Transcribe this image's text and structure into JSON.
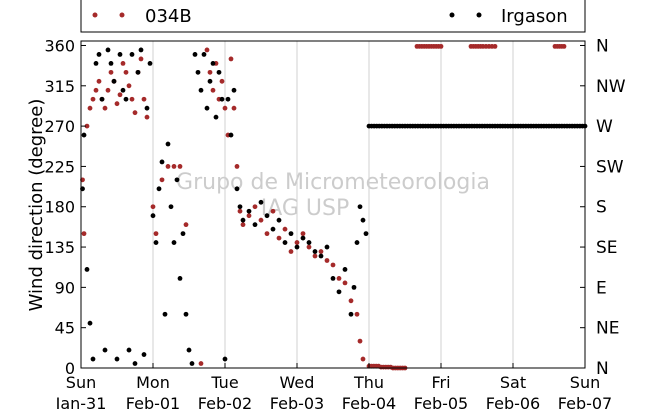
{
  "chart_data": {
    "type": "scatter",
    "title": "",
    "xlabel": "",
    "ylabel": "Wind direction (degree)",
    "ylim": [
      0,
      365
    ],
    "yticks": [
      0,
      45,
      90,
      135,
      180,
      225,
      270,
      315,
      360
    ],
    "right_axis_labels": [
      "N",
      "NE",
      "E",
      "SE",
      "S",
      "SW",
      "W",
      "NW",
      "N"
    ],
    "x_start": "2015-01-31",
    "x_end": "2015-02-07",
    "x_tick_labels": [
      {
        "day": "Sun",
        "date": "Jan-31"
      },
      {
        "day": "Mon",
        "date": "Feb-01"
      },
      {
        "day": "Tue",
        "date": "Feb-02"
      },
      {
        "day": "Wed",
        "date": "Feb-03"
      },
      {
        "day": "Thu",
        "date": "Feb-04"
      },
      {
        "day": "Fri",
        "date": "Feb-05"
      },
      {
        "day": "Sat",
        "date": "Feb-06"
      },
      {
        "day": "Sun",
        "date": "Feb-07"
      }
    ],
    "grid": true,
    "legend_position": "top",
    "watermark": [
      "Grupo de Micrometeorologia",
      "IAG USP"
    ],
    "series": [
      {
        "name": "034B",
        "color": "#a52a2a",
        "points": [
          [
            "2015-01-31 00:30",
            210
          ],
          [
            "2015-01-31 01:00",
            150
          ],
          [
            "2015-01-31 02:00",
            270
          ],
          [
            "2015-01-31 03:00",
            290
          ],
          [
            "2015-01-31 04:00",
            300
          ],
          [
            "2015-01-31 05:00",
            310
          ],
          [
            "2015-01-31 06:00",
            320
          ],
          [
            "2015-01-31 07:00",
            300
          ],
          [
            "2015-01-31 08:00",
            290
          ],
          [
            "2015-01-31 09:00",
            310
          ],
          [
            "2015-01-31 10:00",
            330
          ],
          [
            "2015-01-31 11:00",
            320
          ],
          [
            "2015-01-31 12:00",
            295
          ],
          [
            "2015-01-31 13:00",
            305
          ],
          [
            "2015-01-31 14:00",
            340
          ],
          [
            "2015-01-31 15:00",
            330
          ],
          [
            "2015-01-31 16:00",
            315
          ],
          [
            "2015-01-31 17:00",
            300
          ],
          [
            "2015-01-31 18:00",
            285
          ],
          [
            "2015-01-31 19:00",
            330
          ],
          [
            "2015-01-31 20:00",
            345
          ],
          [
            "2015-01-31 21:00",
            300
          ],
          [
            "2015-01-31 22:00",
            280
          ],
          [
            "2015-02-01 00:00",
            180
          ],
          [
            "2015-02-01 01:00",
            150
          ],
          [
            "2015-02-01 03:00",
            210
          ],
          [
            "2015-02-01 05:00",
            225
          ],
          [
            "2015-02-01 07:00",
            225
          ],
          [
            "2015-02-01 09:00",
            225
          ],
          [
            "2015-02-01 11:00",
            160
          ],
          [
            "2015-02-01 16:00",
            5
          ],
          [
            "2015-02-01 18:00",
            355
          ],
          [
            "2015-02-01 19:00",
            330
          ],
          [
            "2015-02-01 20:00",
            310
          ],
          [
            "2015-02-01 21:00",
            340
          ],
          [
            "2015-02-01 22:00",
            300
          ],
          [
            "2015-02-01 23:00",
            320
          ],
          [
            "2015-02-02 00:00",
            290
          ],
          [
            "2015-02-02 01:00",
            260
          ],
          [
            "2015-02-02 02:00",
            345
          ],
          [
            "2015-02-02 03:00",
            290
          ],
          [
            "2015-02-02 04:00",
            225
          ],
          [
            "2015-02-02 05:00",
            175
          ],
          [
            "2015-02-02 06:00",
            160
          ],
          [
            "2015-02-02 08:00",
            170
          ],
          [
            "2015-02-02 10:00",
            180
          ],
          [
            "2015-02-02 12:00",
            165
          ],
          [
            "2015-02-02 14:00",
            150
          ],
          [
            "2015-02-02 16:00",
            175
          ],
          [
            "2015-02-02 18:00",
            145
          ],
          [
            "2015-02-02 20:00",
            155
          ],
          [
            "2015-02-02 22:00",
            130
          ],
          [
            "2015-02-03 00:00",
            140
          ],
          [
            "2015-02-03 02:00",
            150
          ],
          [
            "2015-02-03 04:00",
            135
          ],
          [
            "2015-02-03 06:00",
            125
          ],
          [
            "2015-02-03 08:00",
            130
          ],
          [
            "2015-02-03 10:00",
            120
          ],
          [
            "2015-02-03 12:00",
            115
          ],
          [
            "2015-02-03 14:00",
            100
          ],
          [
            "2015-02-03 16:00",
            95
          ],
          [
            "2015-02-03 18:00",
            75
          ],
          [
            "2015-02-03 20:00",
            60
          ],
          [
            "2015-02-03 21:00",
            30
          ],
          [
            "2015-02-03 22:00",
            10
          ],
          [
            "2015-02-04 00:00",
            2
          ],
          [
            "2015-02-04 04:00",
            1
          ],
          [
            "2015-02-04 08:00",
            0
          ],
          [
            "2015-02-04 12:00",
            0
          ],
          [
            "2015-02-04 16:00",
            359
          ],
          [
            "2015-02-04 20:00",
            359
          ],
          [
            "2015-02-05 00:00",
            359
          ],
          [
            "2015-02-05 10:00",
            359
          ],
          [
            "2015-02-05 14:00",
            359
          ],
          [
            "2015-02-05 16:00",
            359
          ],
          [
            "2015-02-05 18:00",
            359
          ],
          [
            "2015-02-06 14:00",
            359
          ],
          [
            "2015-02-06 17:00",
            359
          ]
        ]
      },
      {
        "name": "Irgason",
        "color": "#000000",
        "points": [
          [
            "2015-01-31 00:30",
            200
          ],
          [
            "2015-01-31 01:00",
            260
          ],
          [
            "2015-01-31 02:00",
            110
          ],
          [
            "2015-01-31 03:00",
            50
          ],
          [
            "2015-01-31 04:00",
            10
          ],
          [
            "2015-01-31 05:00",
            340
          ],
          [
            "2015-01-31 06:00",
            350
          ],
          [
            "2015-01-31 07:00",
            300
          ],
          [
            "2015-01-31 08:00",
            20
          ],
          [
            "2015-01-31 09:00",
            355
          ],
          [
            "2015-01-31 10:00",
            340
          ],
          [
            "2015-01-31 11:00",
            320
          ],
          [
            "2015-01-31 12:00",
            10
          ],
          [
            "2015-01-31 13:00",
            350
          ],
          [
            "2015-01-31 14:00",
            310
          ],
          [
            "2015-01-31 15:00",
            300
          ],
          [
            "2015-01-31 16:00",
            20
          ],
          [
            "2015-01-31 17:00",
            350
          ],
          [
            "2015-01-31 18:00",
            5
          ],
          [
            "2015-01-31 19:00",
            330
          ],
          [
            "2015-01-31 20:00",
            355
          ],
          [
            "2015-01-31 21:00",
            15
          ],
          [
            "2015-01-31 22:00",
            290
          ],
          [
            "2015-01-31 23:00",
            340
          ],
          [
            "2015-02-01 00:00",
            170
          ],
          [
            "2015-02-01 01:00",
            140
          ],
          [
            "2015-02-01 02:00",
            200
          ],
          [
            "2015-02-01 03:00",
            230
          ],
          [
            "2015-02-01 04:00",
            60
          ],
          [
            "2015-02-01 05:00",
            250
          ],
          [
            "2015-02-01 06:00",
            180
          ],
          [
            "2015-02-01 07:00",
            140
          ],
          [
            "2015-02-01 08:00",
            210
          ],
          [
            "2015-02-01 09:00",
            100
          ],
          [
            "2015-02-01 10:00",
            150
          ],
          [
            "2015-02-01 11:00",
            60
          ],
          [
            "2015-02-01 12:00",
            20
          ],
          [
            "2015-02-01 13:00",
            5
          ],
          [
            "2015-02-01 14:00",
            350
          ],
          [
            "2015-02-01 15:00",
            330
          ],
          [
            "2015-02-01 16:00",
            310
          ],
          [
            "2015-02-01 17:00",
            350
          ],
          [
            "2015-02-01 18:00",
            290
          ],
          [
            "2015-02-01 19:00",
            320
          ],
          [
            "2015-02-01 20:00",
            340
          ],
          [
            "2015-02-01 21:00",
            280
          ],
          [
            "2015-02-01 22:00",
            330
          ],
          [
            "2015-02-01 23:00",
            300
          ],
          [
            "2015-02-02 00:00",
            10
          ],
          [
            "2015-02-02 01:00",
            300
          ],
          [
            "2015-02-02 02:00",
            260
          ],
          [
            "2015-02-02 03:00",
            310
          ],
          [
            "2015-02-02 04:00",
            200
          ],
          [
            "2015-02-02 05:00",
            180
          ],
          [
            "2015-02-02 06:00",
            165
          ],
          [
            "2015-02-02 08:00",
            175
          ],
          [
            "2015-02-02 10:00",
            160
          ],
          [
            "2015-02-02 12:00",
            185
          ],
          [
            "2015-02-02 14:00",
            170
          ],
          [
            "2015-02-02 16:00",
            155
          ],
          [
            "2015-02-02 18:00",
            165
          ],
          [
            "2015-02-02 20:00",
            140
          ],
          [
            "2015-02-02 22:00",
            150
          ],
          [
            "2015-02-03 00:00",
            135
          ],
          [
            "2015-02-03 02:00",
            145
          ],
          [
            "2015-02-03 04:00",
            140
          ],
          [
            "2015-02-03 06:00",
            130
          ],
          [
            "2015-02-03 08:00",
            125
          ],
          [
            "2015-02-03 10:00",
            135
          ],
          [
            "2015-02-03 12:00",
            100
          ],
          [
            "2015-02-03 14:00",
            85
          ],
          [
            "2015-02-03 16:00",
            110
          ],
          [
            "2015-02-03 18:00",
            60
          ],
          [
            "2015-02-03 19:00",
            90
          ],
          [
            "2015-02-03 20:00",
            140
          ],
          [
            "2015-02-03 21:00",
            180
          ],
          [
            "2015-02-03 22:00",
            165
          ],
          [
            "2015-02-03 23:00",
            150
          ],
          [
            "2015-02-04 00:00",
            270
          ],
          [
            "2015-02-04 06:00",
            270
          ],
          [
            "2015-02-04 12:00",
            270
          ],
          [
            "2015-02-04 18:00",
            270
          ],
          [
            "2015-02-05 00:00",
            270
          ],
          [
            "2015-02-05 06:00",
            270
          ],
          [
            "2015-02-05 12:00",
            270
          ],
          [
            "2015-02-05 18:00",
            270
          ],
          [
            "2015-02-06 00:00",
            270
          ],
          [
            "2015-02-06 06:00",
            270
          ],
          [
            "2015-02-06 12:00",
            270
          ],
          [
            "2015-02-06 18:00",
            270
          ],
          [
            "2015-02-07 00:00",
            270
          ]
        ]
      }
    ]
  }
}
